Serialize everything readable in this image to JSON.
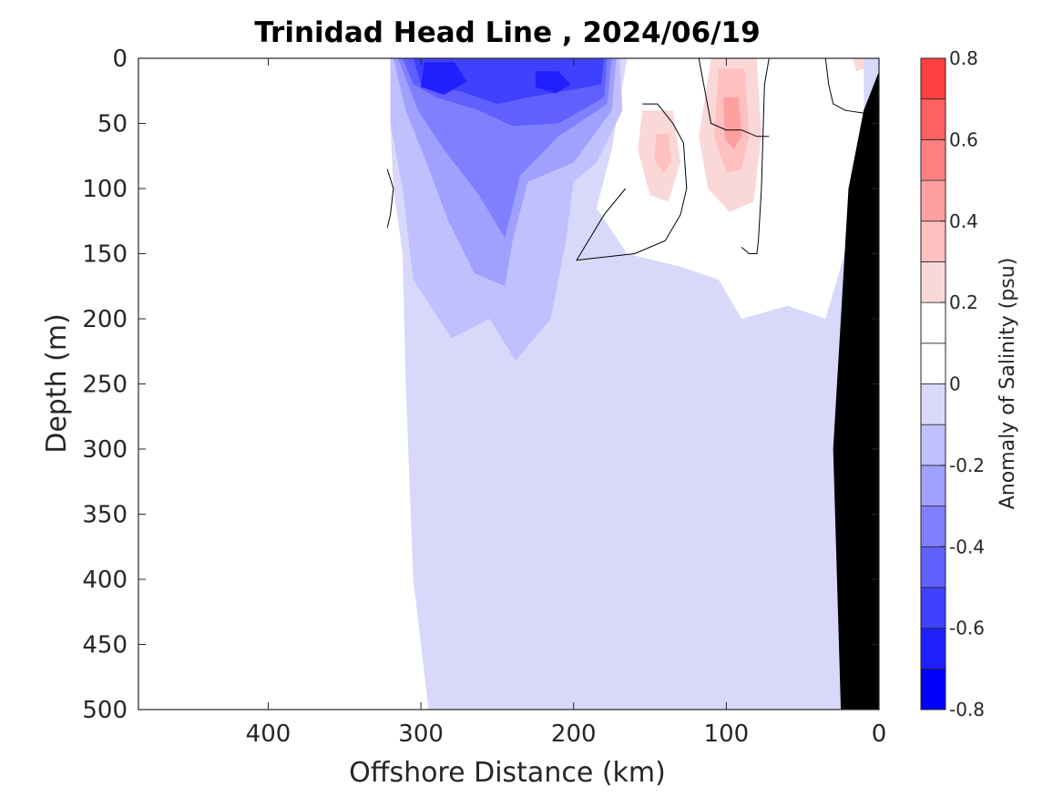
{
  "chart_data": {
    "type": "heatmap",
    "subtype": "filled-contour section",
    "title": "Trinidad Head Line , 2024/06/19",
    "xlabel": "Offshore Distance (km)",
    "ylabel": "Depth (m)",
    "xlim": [
      485,
      0
    ],
    "ylim": [
      0,
      500
    ],
    "x_direction": "reversed",
    "y_direction": "reversed",
    "xticks": [
      400,
      300,
      200,
      100,
      0
    ],
    "xtick_labels": [
      "400",
      "300",
      "200",
      "100",
      "0"
    ],
    "yticks": [
      0,
      50,
      100,
      150,
      200,
      250,
      300,
      350,
      400,
      450,
      500
    ],
    "ytick_labels": [
      "0",
      "50",
      "100",
      "150",
      "200",
      "250",
      "300",
      "350",
      "400",
      "450",
      "500"
    ],
    "grid": false,
    "colorbar": {
      "label": "Anomaly of Salinity (psu)",
      "range": [
        -0.8,
        0.8
      ],
      "levels": [
        -0.8,
        -0.7,
        -0.6,
        -0.5,
        -0.4,
        -0.3,
        -0.2,
        -0.1,
        0,
        0.1,
        0.2,
        0.3,
        0.4,
        0.5,
        0.6,
        0.7,
        0.8
      ],
      "colors": [
        "#0000ff",
        "#2020ff",
        "#4040ff",
        "#6060ff",
        "#8080ff",
        "#a0a0ff",
        "#c0c0ff",
        "#d8d8fb",
        "#ffffff",
        "#ffffff",
        "#fbd8d8",
        "#ffc0c0",
        "#ffa0a0",
        "#ff8080",
        "#ff6060",
        "#ff4040",
        "#ff0000"
      ],
      "ticks": [
        -0.8,
        -0.6,
        -0.4,
        -0.2,
        0,
        0.2,
        0.4,
        0.6,
        0.8
      ],
      "tick_labels": [
        "-0.8",
        "-0.6",
        "-0.4",
        "-0.2",
        "0",
        "0.2",
        "0.4",
        "0.6",
        "0.8"
      ]
    },
    "regions": [
      {
        "level": -0.1,
        "color": "#d8d8fb",
        "points": [
          [
            320,
            0
          ],
          [
            0,
            0
          ],
          [
            0,
            500
          ],
          [
            295,
            500
          ],
          [
            305,
            400
          ],
          [
            310,
            250
          ],
          [
            312,
            150
          ],
          [
            318,
            100
          ],
          [
            320,
            50
          ]
        ]
      },
      {
        "level": 0.0,
        "color": "#ffffff",
        "points": [
          [
            165,
            0
          ],
          [
            10,
            0
          ],
          [
            10,
            100
          ],
          [
            35,
            200
          ],
          [
            60,
            190
          ],
          [
            90,
            200
          ],
          [
            105,
            170
          ],
          [
            130,
            160
          ],
          [
            165,
            150
          ],
          [
            185,
            115
          ],
          [
            175,
            70
          ]
        ]
      },
      {
        "level": -0.2,
        "color": "#c0c0ff",
        "points": [
          [
            320,
            0
          ],
          [
            170,
            0
          ],
          [
            168,
            40
          ],
          [
            185,
            80
          ],
          [
            200,
            95
          ],
          [
            205,
            140
          ],
          [
            215,
            200
          ],
          [
            238,
            232
          ],
          [
            255,
            200
          ],
          [
            280,
            215
          ],
          [
            305,
            170
          ],
          [
            312,
            100
          ],
          [
            320,
            50
          ]
        ]
      },
      {
        "level": -0.3,
        "color": "#a0a0ff",
        "points": [
          [
            318,
            0
          ],
          [
            172,
            0
          ],
          [
            175,
            40
          ],
          [
            200,
            80
          ],
          [
            230,
            95
          ],
          [
            240,
            140
          ],
          [
            245,
            175
          ],
          [
            265,
            165
          ],
          [
            282,
            125
          ],
          [
            298,
            75
          ],
          [
            310,
            40
          ]
        ]
      },
      {
        "level": -0.4,
        "color": "#8080ff",
        "points": [
          [
            315,
            0
          ],
          [
            175,
            0
          ],
          [
            178,
            35
          ],
          [
            210,
            60
          ],
          [
            235,
            90
          ],
          [
            245,
            138
          ],
          [
            262,
            105
          ],
          [
            285,
            70
          ],
          [
            302,
            40
          ]
        ]
      },
      {
        "level": -0.5,
        "color": "#6060ff",
        "points": [
          [
            312,
            0
          ],
          [
            178,
            0
          ],
          [
            180,
            30
          ],
          [
            210,
            50
          ],
          [
            240,
            52
          ],
          [
            262,
            40
          ],
          [
            290,
            30
          ],
          [
            305,
            20
          ]
        ]
      },
      {
        "level": -0.6,
        "color": "#4040ff",
        "points": [
          [
            305,
            0
          ],
          [
            180,
            0
          ],
          [
            182,
            20
          ],
          [
            205,
            25
          ],
          [
            230,
            30
          ],
          [
            250,
            35
          ],
          [
            275,
            25
          ],
          [
            300,
            20
          ]
        ]
      },
      {
        "level": -0.7,
        "color": "#2020ff",
        "points": [
          [
            298,
            3
          ],
          [
            278,
            3
          ],
          [
            270,
            18
          ],
          [
            285,
            28
          ],
          [
            300,
            22
          ]
        ]
      },
      {
        "level": -0.7,
        "color": "#2020ff",
        "points": [
          [
            225,
            10
          ],
          [
            210,
            10
          ],
          [
            202,
            20
          ],
          [
            212,
            27
          ],
          [
            225,
            22
          ]
        ]
      },
      {
        "level": 0.1,
        "color": "#fbd8d8",
        "points": [
          [
            155,
            40
          ],
          [
            135,
            40
          ],
          [
            130,
            80
          ],
          [
            138,
            110
          ],
          [
            150,
            105
          ],
          [
            158,
            70
          ]
        ]
      },
      {
        "level": 0.1,
        "color": "#fbd8d8",
        "points": [
          [
            110,
            0
          ],
          [
            80,
            0
          ],
          [
            77,
            60
          ],
          [
            82,
            110
          ],
          [
            98,
            118
          ],
          [
            112,
            100
          ],
          [
            118,
            60
          ]
        ]
      },
      {
        "level": 0.1,
        "color": "#fbd8d8",
        "points": [
          [
            17,
            0
          ],
          [
            10,
            0
          ],
          [
            10,
            8
          ],
          [
            15,
            10
          ]
        ]
      },
      {
        "level": 0.2,
        "color": "#ffc0c0",
        "points": [
          [
            105,
            8
          ],
          [
            88,
            8
          ],
          [
            85,
            60
          ],
          [
            90,
            85
          ],
          [
            100,
            88
          ],
          [
            108,
            60
          ]
        ]
      },
      {
        "level": 0.2,
        "color": "#ffc0c0",
        "points": [
          [
            146,
            58
          ],
          [
            138,
            58
          ],
          [
            136,
            80
          ],
          [
            141,
            88
          ],
          [
            147,
            78
          ]
        ]
      },
      {
        "level": 0.3,
        "color": "#ffa0a0",
        "points": [
          [
            102,
            30
          ],
          [
            92,
            30
          ],
          [
            90,
            60
          ],
          [
            95,
            70
          ],
          [
            101,
            62
          ]
        ]
      }
    ],
    "zero_contours": [
      [
        [
          155,
          35
        ],
        [
          145,
          35
        ],
        [
          135,
          50
        ],
        [
          128,
          65
        ],
        [
          126,
          100
        ],
        [
          130,
          120
        ],
        [
          140,
          140
        ],
        [
          160,
          150
        ],
        [
          198,
          155
        ],
        [
          180,
          120
        ],
        [
          166,
          100
        ]
      ],
      [
        [
          118,
          0
        ],
        [
          110,
          50
        ],
        [
          100,
          55
        ],
        [
          90,
          55
        ],
        [
          80,
          60
        ],
        [
          72,
          60
        ]
      ],
      [
        [
          72,
          0
        ],
        [
          75,
          20
        ],
        [
          77,
          100
        ],
        [
          79,
          140
        ],
        [
          80,
          150
        ],
        [
          85,
          150
        ],
        [
          90,
          145
        ]
      ],
      [
        [
          322,
          85
        ],
        [
          318,
          100
        ],
        [
          320,
          120
        ],
        [
          322,
          130
        ]
      ],
      [
        [
          35,
          0
        ],
        [
          33,
          20
        ],
        [
          30,
          35
        ],
        [
          22,
          40
        ],
        [
          10,
          42
        ]
      ]
    ],
    "land_mask": [
      [
        0,
        10
      ],
      [
        0,
        500
      ],
      [
        25,
        500
      ],
      [
        30,
        300
      ],
      [
        20,
        100
      ],
      [
        10,
        40
      ]
    ]
  }
}
